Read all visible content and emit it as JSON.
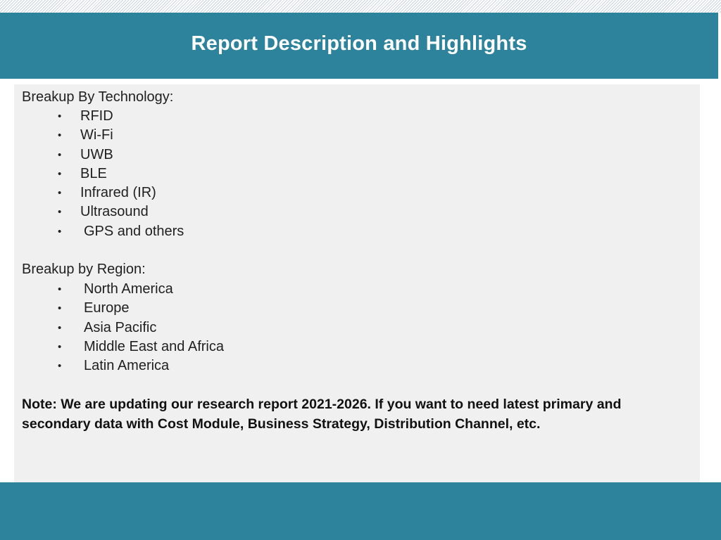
{
  "header": {
    "title": "Report Description and Highlights"
  },
  "technology": {
    "heading": "Breakup By Technology:",
    "items": [
      "RFID",
      "Wi-Fi",
      "UWB",
      "BLE",
      "Infrared (IR)",
      "Ultrasound",
      "GPS and others"
    ]
  },
  "region": {
    "heading": "Breakup by Region:",
    "items": [
      "North America",
      "Europe",
      "Asia Pacific",
      "Middle East and Africa",
      "Latin America"
    ]
  },
  "note": "Note: We are updating our research report 2021-2026. If you want to need latest primary and secondary data with Cost Module, Business Strategy, Distribution Channel, etc.",
  "bullet_symbol": "•",
  "colors": {
    "accent": "#2e839c",
    "panel": "#f0f0f0"
  }
}
